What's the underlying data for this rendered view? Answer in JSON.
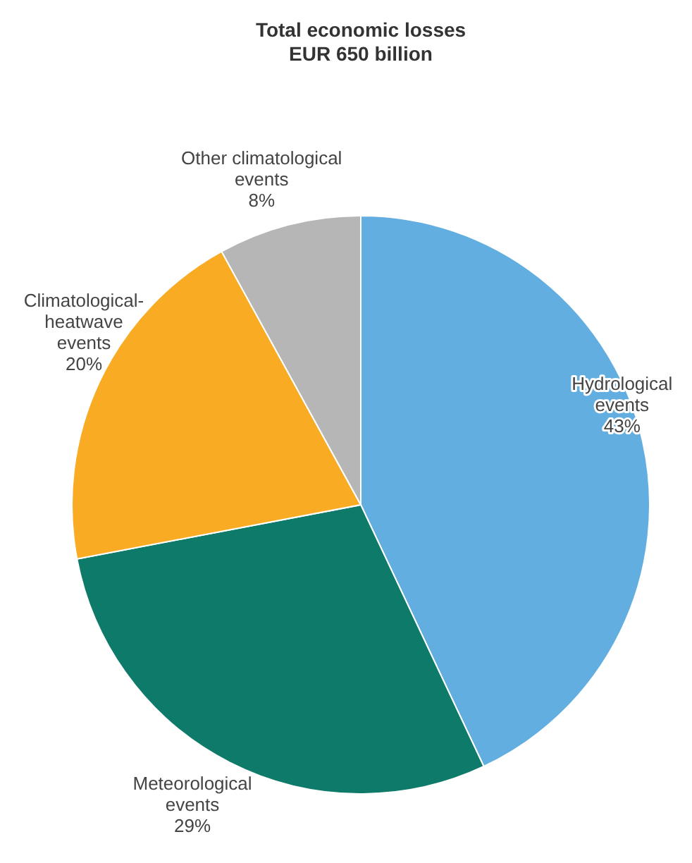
{
  "chart_data": {
    "type": "pie",
    "title": "Total economic losses\nEUR 650 billion",
    "categories": [
      "Hydrological\nevents",
      "Meteorological\nevents",
      "Climatological-\nheatwave\nevents",
      "Other climatological\nevents"
    ],
    "values": [
      43,
      29,
      20,
      8
    ],
    "colors": [
      "#62aee0",
      "#0e7a6a",
      "#f9ab24",
      "#b5b6b5"
    ],
    "value_labels": [
      "43%",
      "29%",
      "20%",
      "8%"
    ]
  }
}
